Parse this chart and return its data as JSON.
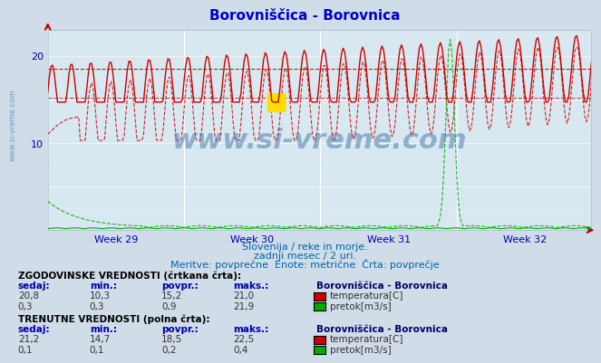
{
  "title": "Borovniščica - Borovnica",
  "title_color": "#0000cc",
  "bg_color": "#d0dce8",
  "plot_bg_color": "#d8e8f0",
  "grid_color": "#ffffff",
  "x_weeks": [
    "Week 29",
    "Week 30",
    "Week 31",
    "Week 32"
  ],
  "y_ticks": [
    10,
    20
  ],
  "y_min": 0,
  "y_max": 23,
  "n_points": 336,
  "temp_hist_min": 10.3,
  "temp_hist_max": 21.0,
  "temp_hist_avg": 15.2,
  "temp_hist_current": 20.8,
  "temp_curr_min": 14.7,
  "temp_curr_max": 22.5,
  "temp_curr_avg": 18.5,
  "temp_curr_current": 21.2,
  "flow_hist_min": 0.3,
  "flow_hist_max": 21.9,
  "flow_hist_avg": 0.9,
  "flow_hist_current": 0.3,
  "flow_curr_min": 0.1,
  "flow_curr_max": 0.4,
  "flow_curr_avg": 0.2,
  "flow_curr_current": 0.1,
  "temp_color": "#cc0000",
  "flow_color": "#00aa00",
  "avg_line_color_temp_hist": "#cc0000",
  "avg_line_color_temp_curr": "#cc0000",
  "watermark_text": "www.si-vreme.com",
  "watermark_color": "#4477aa",
  "subtitle1": "Slovenija / reke in morje.",
  "subtitle2": "zadnji mesec / 2 uri.",
  "subtitle3": "Meritve: povprečne  Enote: metrične  Črta: povprečje",
  "table_header1": "ZGODOVINSKE VREDNOSTI (črtkana črta):",
  "table_header2": "TRENUTNE VREDNOSTI (polna črta):",
  "col_headers": [
    "sedaj:",
    "min.:",
    "povpr.:",
    "maks.:"
  ],
  "hist_temp_vals": [
    "20,8",
    "10,3",
    "15,2",
    "21,0"
  ],
  "hist_flow_vals": [
    "0,3",
    "0,3",
    "0,9",
    "21,9"
  ],
  "curr_temp_vals": [
    "21,2",
    "14,7",
    "18,5",
    "22,5"
  ],
  "curr_flow_vals": [
    "0,1",
    "0,1",
    "0,2",
    "0,4"
  ],
  "station_name": "Borovniščica - Borovnica",
  "label_temp": "temperatura[C]",
  "label_flow": "pretok[m3/s]"
}
